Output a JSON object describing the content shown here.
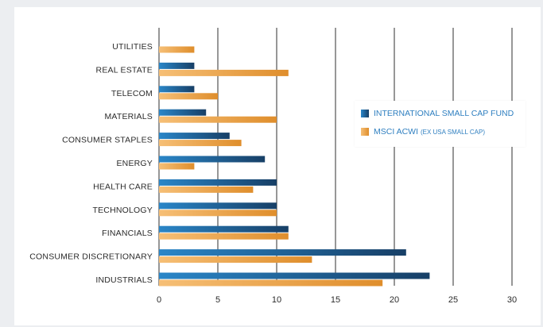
{
  "colors": {
    "fund_dark": "#173f66",
    "fund_light": "#2a86c8",
    "benchmark_dark": "#df8e2c",
    "benchmark_light": "#f6bf76",
    "grid": "#2f2f2f",
    "legend_text": "#2f7fc0"
  },
  "legend": {
    "fund_label": "INTERNATIONAL SMALL CAP FUND",
    "benchmark_label": "MSCI ACWI",
    "benchmark_note": "(EX USA SMALL CAP)"
  },
  "chart_data": {
    "type": "bar",
    "orientation": "horizontal",
    "categories": [
      "UTILITIES",
      "REAL ESTATE",
      "TELECOM",
      "MATERIALS",
      "CONSUMER STAPLES",
      "ENERGY",
      "HEALTH CARE",
      "TECHNOLOGY",
      "FINANCIALS",
      "CONSUMER DISCRETIONARY",
      "INDUSTRIALS"
    ],
    "series": [
      {
        "name": "INTERNATIONAL SMALL CAP FUND",
        "values": [
          0,
          3,
          3,
          4,
          6,
          9,
          10,
          10,
          11,
          21,
          23
        ]
      },
      {
        "name": "MSCI ACWI (EX USA SMALL CAP)",
        "values": [
          3,
          11,
          5,
          10,
          7,
          3,
          8,
          10,
          11,
          13,
          19
        ]
      }
    ],
    "xlim": [
      0,
      30
    ],
    "xticks": [
      "0",
      "5",
      "10",
      "15",
      "20",
      "25",
      "30"
    ],
    "grid": "vertical",
    "legend_position": "right"
  }
}
